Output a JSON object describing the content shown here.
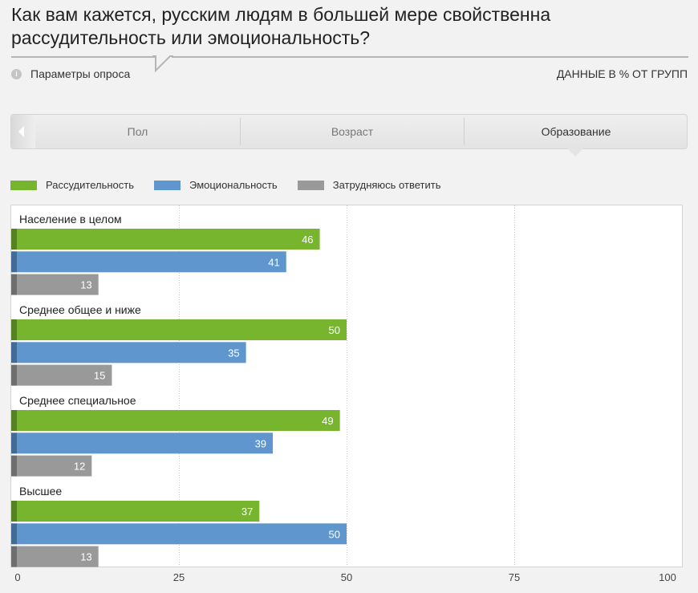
{
  "question": "Как вам кажется, русским людям в большей мере свойственна рассудительность или эмоциональность?",
  "params_label": "Параметры опроса",
  "info_icon_glyph": "i",
  "units_label": "ДАННЫЕ В % ОТ ГРУПП",
  "tabs": [
    {
      "label": "Пол",
      "active": false
    },
    {
      "label": "Возраст",
      "active": false
    },
    {
      "label": "Образование",
      "active": true
    }
  ],
  "icons": {
    "back": "chevron-left-icon",
    "info": "info-icon"
  },
  "colors": {
    "series": [
      "#77b52e",
      "#5e96cd",
      "#999999"
    ]
  },
  "chart_data": {
    "type": "bar",
    "orientation": "horizontal",
    "categories": [
      "Население в целом",
      "Среднее общее и ниже",
      "Среднее специальное",
      "Высшее"
    ],
    "series": [
      {
        "name": "Рассудительность",
        "values": [
          46,
          50,
          49,
          37
        ]
      },
      {
        "name": "Эмоциональность",
        "values": [
          41,
          35,
          39,
          50
        ]
      },
      {
        "name": "Затрудняюсь ответить",
        "values": [
          13,
          15,
          12,
          13
        ]
      }
    ],
    "xlim": [
      0,
      100
    ],
    "xticks": [
      0,
      25,
      50,
      75,
      100
    ],
    "grid": true,
    "legend_position": "top-left",
    "data_labels": true
  }
}
